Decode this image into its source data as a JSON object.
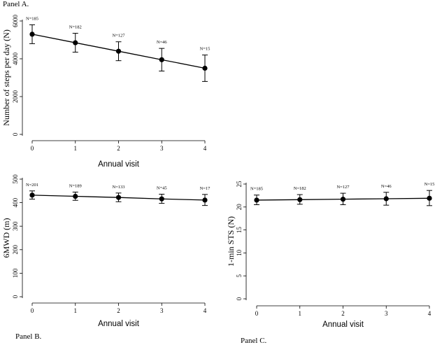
{
  "chart_data": [
    {
      "type": "line",
      "panel_label": "Panel A.",
      "xlabel": "Annual visit",
      "ylabel": "Number of steps per day (N)",
      "x": [
        0,
        1,
        2,
        3,
        4
      ],
      "xlim": [
        0,
        4
      ],
      "ylim": [
        0,
        6000
      ],
      "yticks": [
        0,
        2000,
        4000,
        6000
      ],
      "values": [
        5300,
        4850,
        4400,
        3950,
        3500
      ],
      "lower": [
        4800,
        4350,
        3900,
        3350,
        2800
      ],
      "upper": [
        5800,
        5350,
        4900,
        4550,
        4200
      ],
      "n_labels": [
        "N=185",
        "N=182",
        "N=127",
        "N=46",
        "N=15"
      ],
      "grid": false
    },
    {
      "type": "line",
      "panel_label": "Panel B.",
      "xlabel": "Annual visit",
      "ylabel": "6MWD (m)",
      "x": [
        0,
        1,
        2,
        3,
        4
      ],
      "xlim": [
        0,
        4
      ],
      "ylim": [
        0,
        500
      ],
      "yticks": [
        0,
        100,
        200,
        300,
        400,
        500
      ],
      "values": [
        432,
        427,
        422,
        416,
        411
      ],
      "lower": [
        415,
        410,
        404,
        397,
        388
      ],
      "upper": [
        450,
        445,
        441,
        436,
        435
      ],
      "n_labels": [
        "N=201",
        "N=189",
        "N=133",
        "N=45",
        "N=17"
      ],
      "grid": false
    },
    {
      "type": "line",
      "panel_label": "Panel C.",
      "xlabel": "Annual visit",
      "ylabel": "1-min STS (N)",
      "x": [
        0,
        1,
        2,
        3,
        4
      ],
      "xlim": [
        0,
        4
      ],
      "ylim": [
        0,
        25
      ],
      "yticks": [
        0,
        5,
        10,
        15,
        20,
        25
      ],
      "values": [
        21.5,
        21.6,
        21.7,
        21.8,
        21.9
      ],
      "lower": [
        20.5,
        20.6,
        20.5,
        20.4,
        20.3
      ],
      "upper": [
        22.6,
        22.7,
        23.0,
        23.2,
        23.6
      ],
      "n_labels": [
        "N=185",
        "N=182",
        "N=127",
        "N=46",
        "N=15"
      ],
      "grid": false
    }
  ]
}
